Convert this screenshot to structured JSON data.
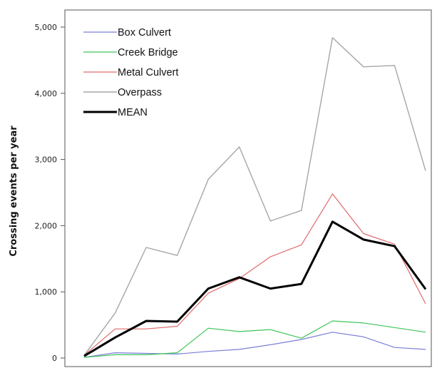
{
  "chart_data": {
    "type": "line",
    "title": "",
    "xlabel": "",
    "ylabel": "Crossing events per year",
    "ylim": [
      0,
      5300
    ],
    "yticks": [
      0,
      1000,
      2000,
      3000,
      4000,
      5000
    ],
    "ytick_labels": [
      "0",
      "1,000",
      "2,000",
      "3,000",
      "4,000",
      "5,000"
    ],
    "x": [
      1,
      2,
      3,
      4,
      5,
      6,
      7,
      8,
      9,
      10,
      11,
      12
    ],
    "xlim": [
      1,
      12
    ],
    "grid": false,
    "legend": "top-left",
    "series": [
      {
        "name": "Box Culvert",
        "color": "#7a7fd6",
        "width": 1.2,
        "values": [
          10,
          80,
          70,
          60,
          100,
          130,
          200,
          280,
          390,
          320,
          160,
          130
        ]
      },
      {
        "name": "Creek Bridge",
        "color": "#3fc45a",
        "width": 1.2,
        "values": [
          10,
          50,
          50,
          80,
          450,
          400,
          430,
          300,
          560,
          530,
          460,
          390
        ]
      },
      {
        "name": "Metal Culvert",
        "color": "#e06a6a",
        "width": 1.2,
        "values": [
          40,
          440,
          440,
          480,
          980,
          1200,
          1530,
          1710,
          2480,
          1880,
          1720,
          820
        ]
      },
      {
        "name": "Overpass",
        "color": "#a6a6a6",
        "width": 1.4,
        "values": [
          40,
          680,
          1670,
          1550,
          2700,
          3190,
          2070,
          2230,
          4840,
          4400,
          4420,
          2830
        ]
      },
      {
        "name": "MEAN",
        "color": "#000000",
        "width": 3,
        "values": [
          30,
          310,
          560,
          550,
          1050,
          1220,
          1050,
          1120,
          2060,
          1790,
          1690,
          1040
        ]
      }
    ]
  }
}
